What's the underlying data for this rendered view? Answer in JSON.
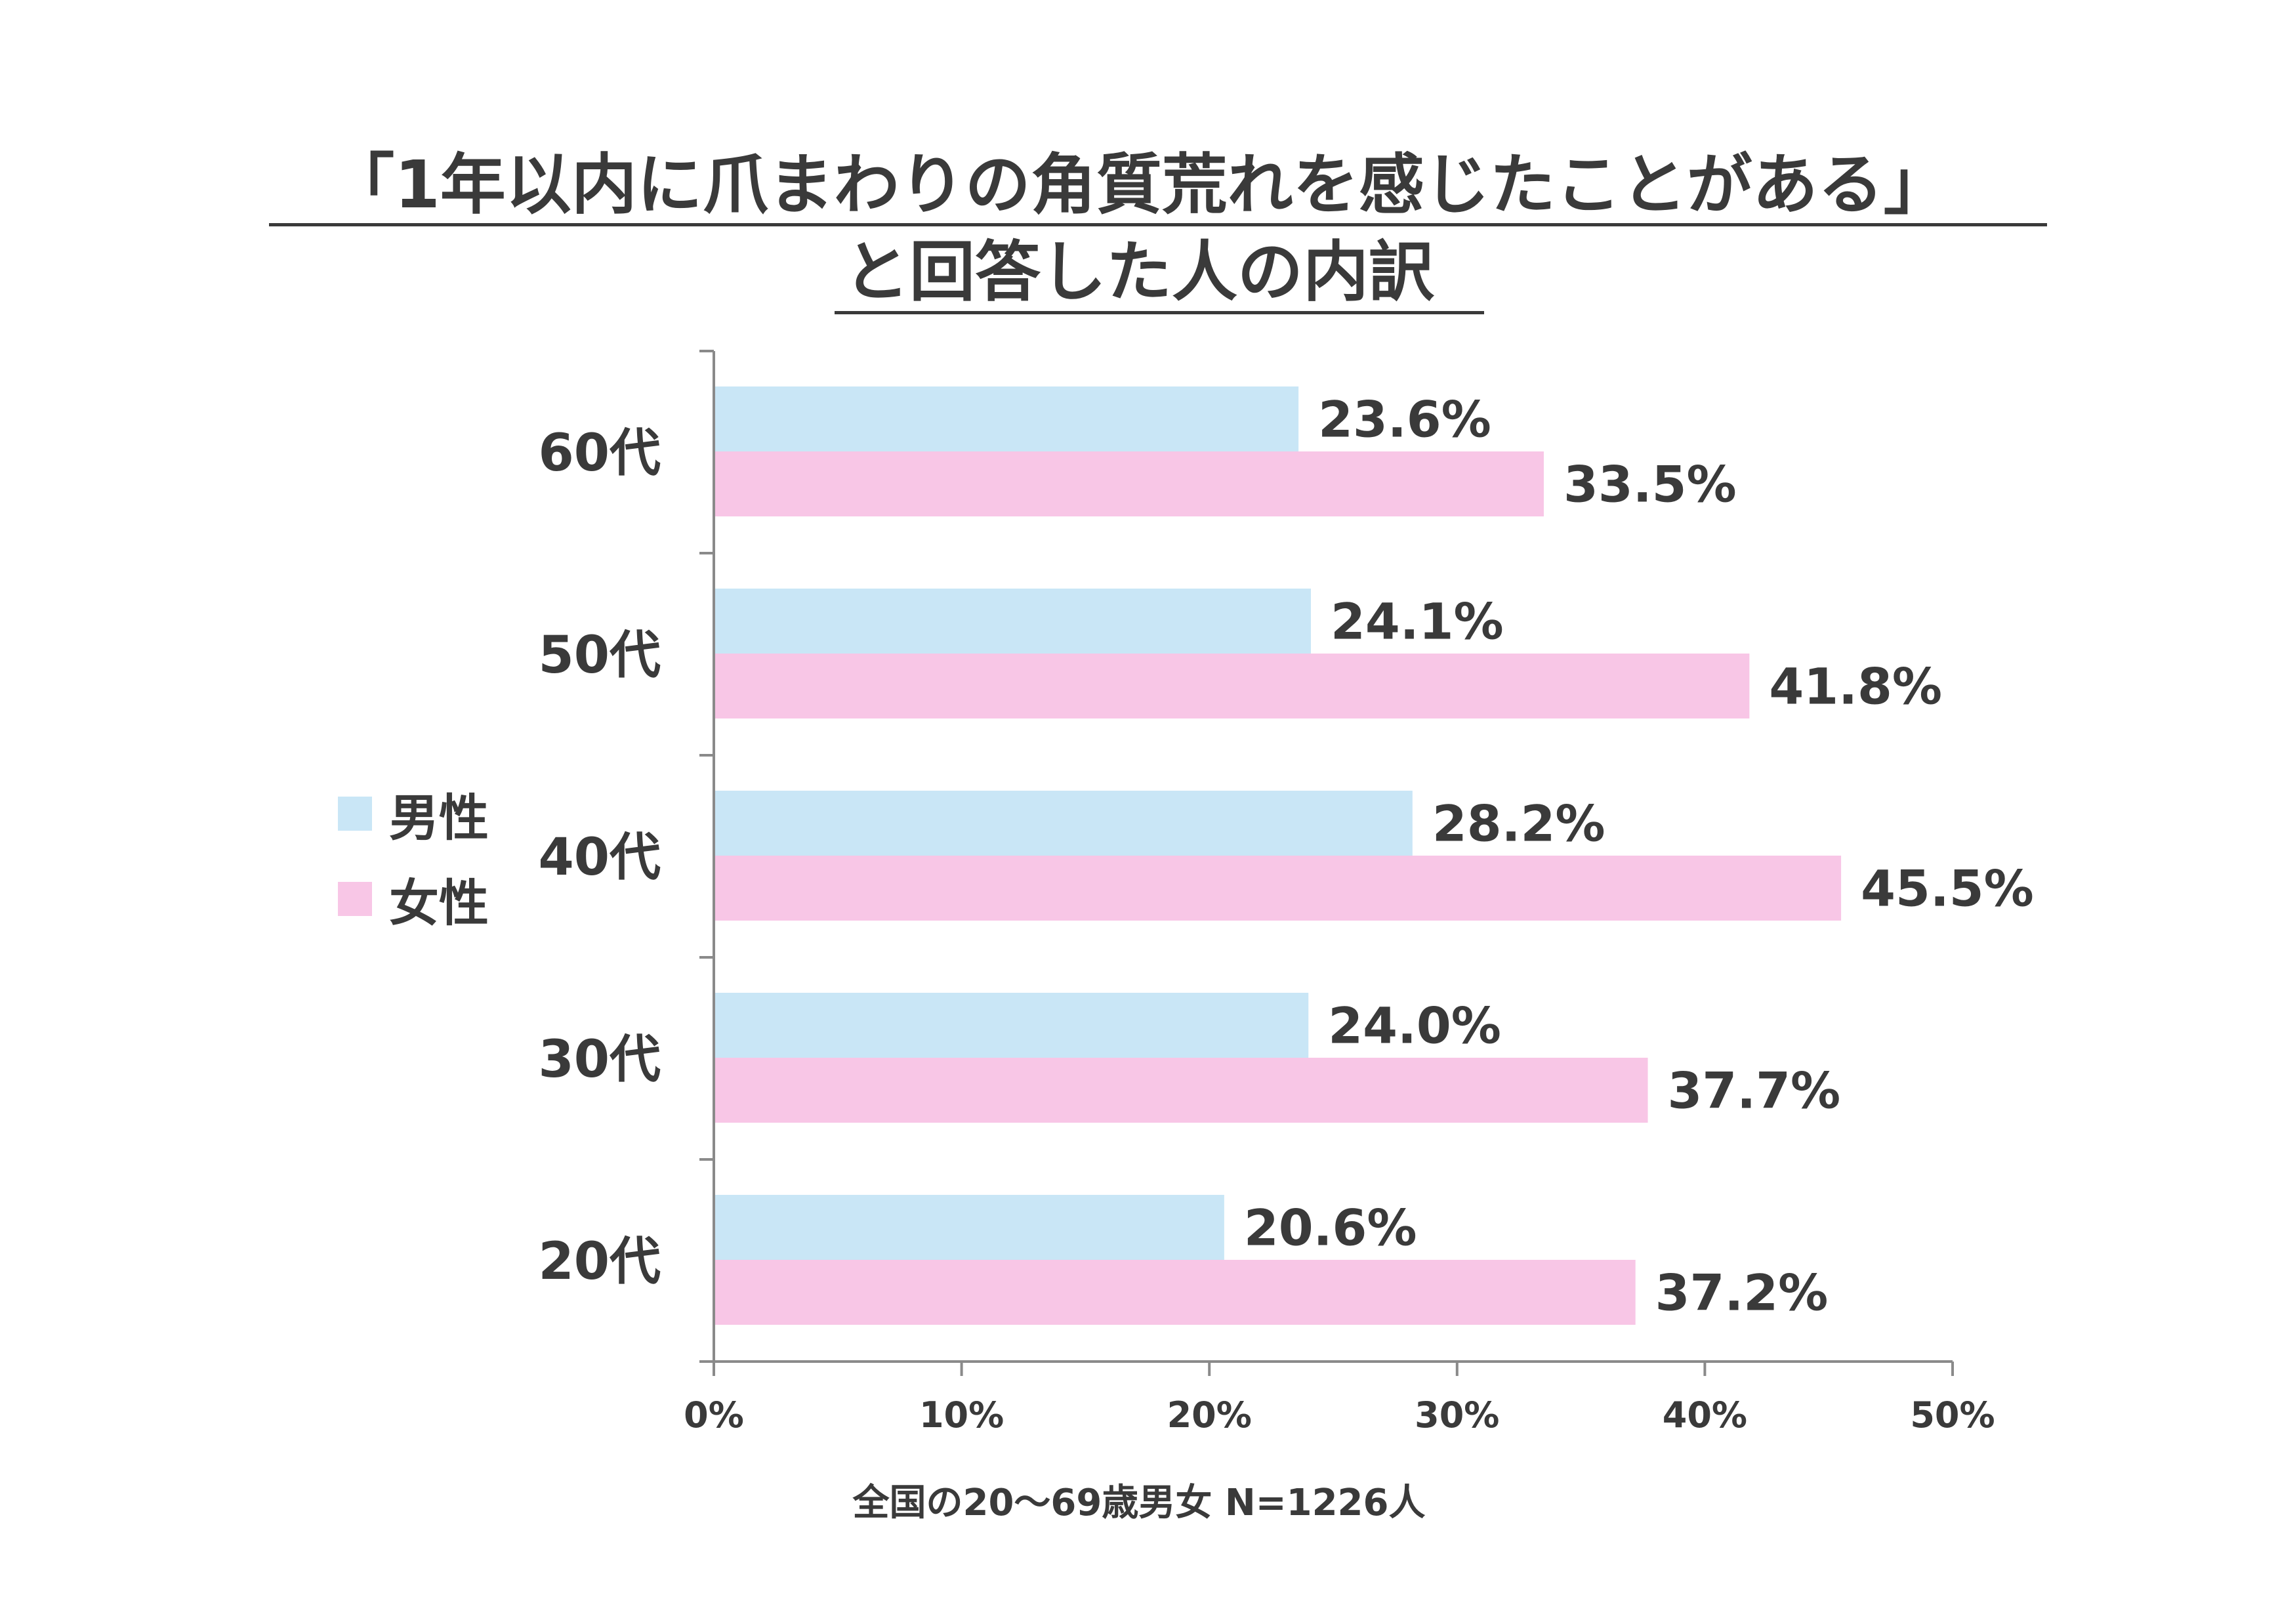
{
  "title": {
    "line1": "「1年以内に爪まわりの角質荒れを感じたことがある」",
    "line2": "と回答した人の内訳"
  },
  "note": "全国の20〜69歳男女 N=1226人",
  "colors": {
    "male": "#c9e6f6",
    "female": "#f8c6e6",
    "axis": "#8a8a8a",
    "text": "#3a3a3a"
  },
  "chart_data": {
    "type": "bar",
    "orientation": "horizontal",
    "categories": [
      "60代",
      "50代",
      "40代",
      "30代",
      "20代"
    ],
    "series": [
      {
        "name": "男性",
        "values": [
          23.6,
          24.1,
          28.2,
          24.0,
          20.6
        ],
        "labels": [
          "23.6%",
          "24.1%",
          "28.2%",
          "24.0%",
          "20.6%"
        ]
      },
      {
        "name": "女性",
        "values": [
          33.5,
          41.8,
          45.5,
          37.7,
          37.2
        ],
        "labels": [
          "33.5%",
          "41.8%",
          "45.5%",
          "37.7%",
          "37.2%"
        ]
      }
    ],
    "xlim": [
      0,
      50
    ],
    "xticks": [
      "0%",
      "10%",
      "20%",
      "30%",
      "40%",
      "50%"
    ],
    "legend_position": "left",
    "grid": false,
    "xlabel": "",
    "ylabel": ""
  }
}
